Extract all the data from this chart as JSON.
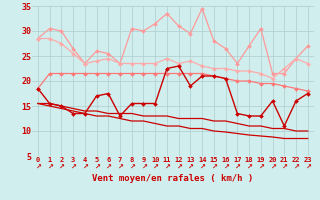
{
  "xlabel": "Vent moyen/en rafales ( km/h )",
  "bg_color": "#d0eeee",
  "grid_color": "#b0cccc",
  "x": [
    0,
    1,
    2,
    3,
    4,
    5,
    6,
    7,
    8,
    9,
    10,
    11,
    12,
    13,
    14,
    15,
    16,
    17,
    18,
    19,
    20,
    21,
    22,
    23
  ],
  "ylim": [
    5,
    35
  ],
  "yticks": [
    5,
    10,
    15,
    20,
    25,
    30,
    35
  ],
  "series": [
    {
      "name": "rafales_upper",
      "color": "#ff9999",
      "lw": 0.9,
      "marker": "D",
      "ms": 2.0,
      "y": [
        28.5,
        30.5,
        30.0,
        26.5,
        23.5,
        26.0,
        25.5,
        23.5,
        30.5,
        30.0,
        31.5,
        33.5,
        31.0,
        29.5,
        34.5,
        28.0,
        26.5,
        23.5,
        27.0,
        30.5,
        21.5,
        21.5,
        24.5,
        27.0
      ]
    },
    {
      "name": "rafales_lower",
      "color": "#ffaaaa",
      "lw": 0.9,
      "marker": "D",
      "ms": 2.0,
      "y": [
        28.5,
        28.5,
        27.5,
        25.5,
        23.5,
        24.0,
        24.5,
        23.5,
        23.5,
        23.5,
        23.5,
        24.5,
        23.5,
        24.0,
        23.0,
        22.5,
        22.5,
        22.0,
        22.0,
        21.5,
        20.5,
        22.5,
        24.5,
        23.5
      ]
    },
    {
      "name": "vent_upper",
      "color": "#ff7777",
      "lw": 0.9,
      "marker": "D",
      "ms": 2.0,
      "y": [
        18.5,
        21.5,
        21.5,
        21.5,
        21.5,
        21.5,
        21.5,
        21.5,
        21.5,
        21.5,
        21.5,
        21.5,
        21.5,
        21.5,
        21.5,
        21.0,
        20.5,
        20.0,
        20.0,
        19.5,
        19.5,
        19.0,
        18.5,
        18.0
      ]
    },
    {
      "name": "vent_zigzag",
      "color": "#cc0000",
      "lw": 1.0,
      "marker": "D",
      "ms": 2.0,
      "y": [
        18.5,
        15.5,
        15.0,
        13.5,
        13.5,
        17.0,
        17.5,
        13.0,
        15.5,
        15.5,
        15.5,
        22.5,
        23.0,
        19.0,
        21.0,
        21.0,
        20.5,
        13.5,
        13.0,
        13.0,
        16.0,
        11.0,
        16.0,
        17.5
      ]
    },
    {
      "name": "trend1",
      "color": "#cc0000",
      "lw": 0.9,
      "marker": null,
      "ms": 0,
      "y": [
        15.5,
        15.5,
        15.0,
        14.5,
        14.0,
        14.0,
        13.5,
        13.5,
        13.5,
        13.0,
        13.0,
        13.0,
        12.5,
        12.5,
        12.5,
        12.0,
        12.0,
        11.5,
        11.0,
        11.0,
        10.5,
        10.5,
        10.0,
        10.0
      ]
    },
    {
      "name": "trend2",
      "color": "#cc0000",
      "lw": 0.9,
      "marker": null,
      "ms": 0,
      "y": [
        15.5,
        15.0,
        14.5,
        14.0,
        13.5,
        13.0,
        13.0,
        12.5,
        12.0,
        12.0,
        11.5,
        11.0,
        11.0,
        10.5,
        10.5,
        10.0,
        9.8,
        9.5,
        9.2,
        9.0,
        8.8,
        8.5,
        8.5,
        8.5
      ]
    }
  ],
  "wind_arrow_chars": [
    "↗",
    "↗",
    "↗",
    "↗",
    "↗",
    "↗",
    "↗",
    "↗",
    "↗",
    "↗",
    "↗",
    "↗",
    "↗",
    "↗",
    "↗",
    "↗",
    "↗",
    "↗",
    "↗",
    "↗",
    "↗",
    "↗",
    "↗",
    "↗"
  ]
}
